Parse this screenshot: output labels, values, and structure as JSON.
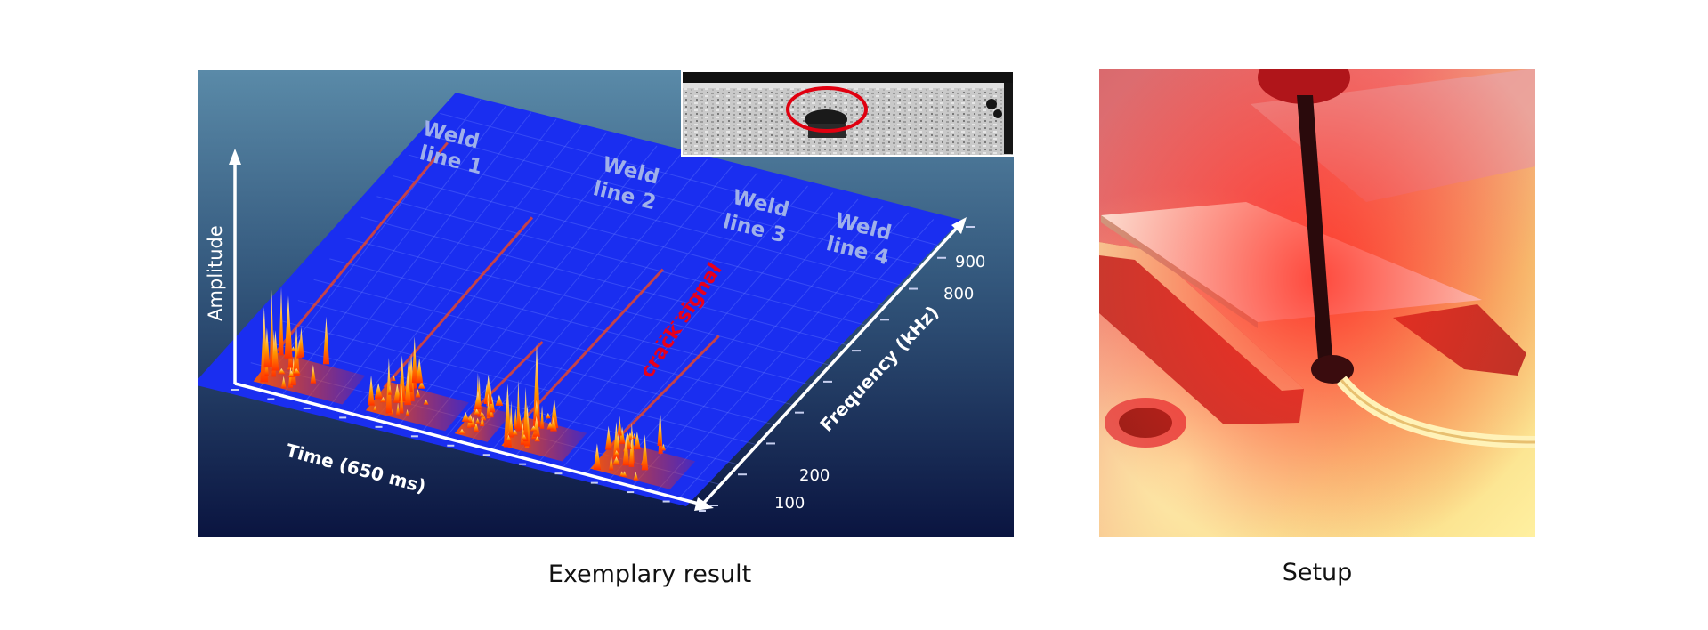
{
  "figure": {
    "left_caption": "Exemplary result",
    "right_caption": "Setup"
  },
  "spectrogram": {
    "axis_amplitude": "Amplitude",
    "axis_time": "Time (650 ms)",
    "axis_frequency": "Frequency (kHz)",
    "frequency_ticks": [
      "900",
      "800",
      "200",
      "100"
    ],
    "weld_lines": [
      {
        "line1": "Weld",
        "line2": "line 1"
      },
      {
        "line1": "Weld",
        "line2": "line 2"
      },
      {
        "line1": "Weld",
        "line2": "line 3"
      },
      {
        "line1": "Weld",
        "line2": "line 4"
      }
    ],
    "annotation": "crack signal",
    "colors": {
      "background_top": "#5a8aa8",
      "background_bottom": "#0a1440",
      "plane": "#1a2ef0",
      "signal": "#ff8c00",
      "annotation": "#e8001c",
      "label": "#9fb0ea"
    }
  },
  "inset": {
    "marker_color": "#e00010"
  }
}
